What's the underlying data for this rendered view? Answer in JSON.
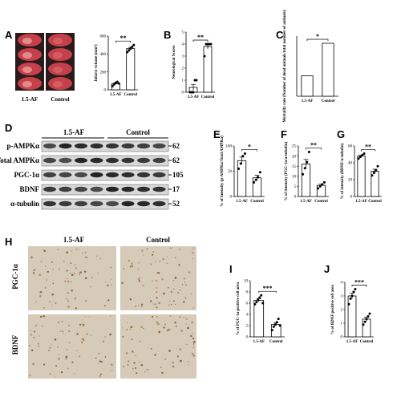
{
  "figure": {
    "panel_letters": [
      "A",
      "B",
      "C",
      "D",
      "E",
      "F",
      "G",
      "H",
      "I",
      "J"
    ],
    "brain_labels": [
      "1.5-AF",
      "Control"
    ],
    "blot_groups": [
      "1.5-AF",
      "Control"
    ],
    "blot_rows": [
      {
        "label": "p-AMPKα",
        "kda": "62"
      },
      {
        "label": "Total AMPKα",
        "kda": "62"
      },
      {
        "label": "PGC-1α",
        "kda": "105"
      },
      {
        "label": "BDNF",
        "kda": "17"
      },
      {
        "label": "α-tubulin",
        "kda": "52"
      }
    ],
    "histology_columns": [
      "1.5-AF",
      "Control"
    ],
    "histology_rows": [
      "PGC-1α",
      "BDNF"
    ]
  },
  "chart_data": [
    {
      "type": "bar",
      "ylabel": "Infarct volume (mm³)",
      "categories": [
        "1.5-AF",
        "Control"
      ],
      "values": [
        68,
        460
      ],
      "errors": [
        10,
        15
      ],
      "points": [
        [
          40,
          60,
          80,
          90,
          70
        ],
        [
          420,
          440,
          460,
          480,
          500
        ]
      ],
      "ylim": [
        0,
        600
      ],
      "yticks": [
        0,
        200,
        400,
        600
      ],
      "significance": "**",
      "color": "#ffffff"
    },
    {
      "type": "bar",
      "ylabel": "Neurological Scores",
      "categories": [
        "1.5-AF",
        "Control"
      ],
      "values": [
        0.4,
        3.8
      ],
      "errors": [
        0.25,
        0.2
      ],
      "points": [
        [
          0,
          0,
          0,
          1,
          1
        ],
        [
          3,
          4,
          4,
          4,
          4
        ]
      ],
      "ylim": [
        0,
        5
      ],
      "yticks": [
        0,
        1,
        2,
        3,
        4,
        5
      ],
      "significance": "**",
      "color": "#ffffff"
    },
    {
      "type": "bar",
      "ylabel": "Mortality rate (Number of dead animals/total number of animals)",
      "categories": [
        "1.5-AF",
        "Control"
      ],
      "values": [
        17,
        44
      ],
      "ylim": [
        0,
        50
      ],
      "significance": "*",
      "color": "#ffffff"
    },
    {
      "type": "bar",
      "ylabel": "% of intensity (p-AMPKα/Total AMPKα)",
      "categories": [
        "1.5-AF",
        "Control"
      ],
      "values": [
        71,
        37
      ],
      "errors": [
        7,
        5
      ],
      "points": [
        [
          55,
          65,
          80,
          85
        ],
        [
          28,
          33,
          38,
          48
        ]
      ],
      "ylim": [
        0,
        100
      ],
      "yticks": [
        0,
        50,
        100
      ],
      "significance": "*",
      "color": "#ffffff"
    },
    {
      "type": "bar",
      "ylabel": "% of intensity (PGC-1α/α-tubulin)",
      "categories": [
        "1.5-AF",
        "Control"
      ],
      "values": [
        16,
        5.5
      ],
      "errors": [
        2.3,
        0.6
      ],
      "points": [
        [
          11,
          14,
          17,
          22
        ],
        [
          4,
          5,
          6,
          7
        ]
      ],
      "ylim": [
        0,
        25
      ],
      "yticks": [
        0,
        5,
        10,
        15,
        20,
        25
      ],
      "significance": "**",
      "color": "#ffffff"
    },
    {
      "type": "bar",
      "ylabel": "% of intensity (BDNF/α-tubulin)",
      "categories": [
        "1.5-AF",
        "Control"
      ],
      "values": [
        48,
        30
      ],
      "errors": [
        1.3,
        2.4
      ],
      "points": [
        [
          45,
          47,
          49,
          51
        ],
        [
          25,
          28,
          31,
          36
        ]
      ],
      "ylim": [
        0,
        60
      ],
      "yticks": [
        0,
        20,
        40,
        60
      ],
      "significance": "**",
      "color": "#ffffff"
    },
    {
      "type": "bar",
      "ylabel": "% of PGC-1α positive cell area",
      "categories": [
        "1.5-AF",
        "Control"
      ],
      "values": [
        6.5,
        2.2
      ],
      "errors": [
        0.3,
        0.3
      ],
      "points": [
        [
          5.8,
          6.2,
          6.6,
          7.0,
          7.4,
          6.0
        ],
        [
          1.2,
          1.8,
          2.2,
          2.6,
          3.2,
          2.0
        ]
      ],
      "ylim": [
        0,
        10
      ],
      "yticks": [
        0,
        2,
        4,
        6,
        8,
        10
      ],
      "significance": "***",
      "color": "#ffffff"
    },
    {
      "type": "bar",
      "ylabel": "% of BDNF positive cell area",
      "categories": [
        "1.5-AF",
        "Control"
      ],
      "values": [
        3.0,
        1.3
      ],
      "errors": [
        0.2,
        0.15
      ],
      "points": [
        [
          2.4,
          2.8,
          3.0,
          3.3,
          3.5
        ],
        [
          0.9,
          1.1,
          1.3,
          1.5,
          1.7
        ]
      ],
      "ylim": [
        0,
        4
      ],
      "yticks": [
        0,
        1,
        2,
        3,
        4
      ],
      "significance": "***",
      "color": "#ffffff"
    }
  ]
}
